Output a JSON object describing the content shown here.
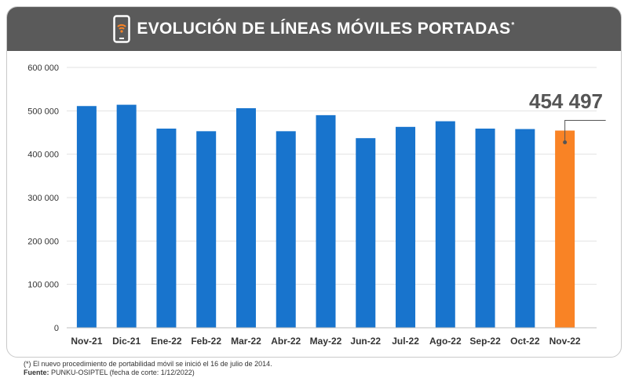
{
  "header": {
    "title": "EVOLUCIÓN DE LÍNEAS MÓVILES PORTADAS",
    "title_mark": "*",
    "icon": "mobile-phone-wifi-icon"
  },
  "chart_data": {
    "type": "bar",
    "categories": [
      "Nov-21",
      "Dic-21",
      "Ene-22",
      "Feb-22",
      "Mar-22",
      "Abr-22",
      "May-22",
      "Jun-22",
      "Jul-22",
      "Ago-22",
      "Sep-22",
      "Oct-22",
      "Nov-22"
    ],
    "values": [
      511000,
      514000,
      459000,
      453000,
      506000,
      453000,
      490000,
      437000,
      463000,
      476000,
      459000,
      458000,
      454497
    ],
    "ylim": [
      0,
      600000
    ],
    "yticks": [
      0,
      100000,
      200000,
      300000,
      400000,
      500000,
      600000
    ],
    "ytick_labels": [
      "0",
      "100 000",
      "200 000",
      "300 000",
      "400 000",
      "500 000",
      "600 000"
    ],
    "highlight_label": "454 497",
    "grid": true,
    "colors": {
      "bar": "#1874cd",
      "highlight": "#f98325",
      "grid": "#e2e2e2",
      "header": "#5a5a5a"
    }
  },
  "footnote": {
    "note": "(*) El nuevo procedimiento de portabilidad móvil se inició el 16 de julio de 2014.",
    "source_label": "Fuente:",
    "source_text": " PUNKU-OSIPTEL (fecha de corte: 1/12/2022)"
  }
}
